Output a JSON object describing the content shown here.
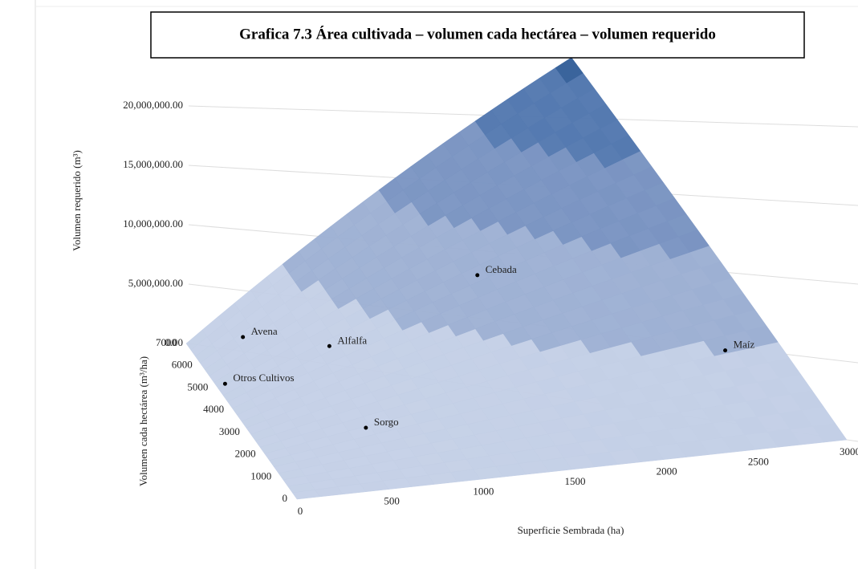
{
  "chart_data": {
    "type": "surface3d",
    "title": "Grafica 7.3 Área cultivada – volumen cada hectárea – volumen requerido",
    "xlabel": "Superficie Sembrada (ha)",
    "ylabel": "Volumen cada hectárea (m³/ha)",
    "zlabel": "Volumen requerido (m³)",
    "xlim": [
      0,
      3000
    ],
    "xticks": [
      0,
      500,
      1000,
      1500,
      2000,
      2500,
      3000
    ],
    "ylim": [
      0,
      7000
    ],
    "yticks": [
      0,
      1000,
      2000,
      3000,
      4000,
      5000,
      6000,
      7000
    ],
    "zlim": [
      0,
      21000000
    ],
    "zticks": [
      {
        "value": 0,
        "label": "0.00"
      },
      {
        "value": 5000000,
        "label": "5,000,000.00"
      },
      {
        "value": 10000000,
        "label": "10,000,000.00"
      },
      {
        "value": 15000000,
        "label": "15,000,000.00"
      },
      {
        "value": 20000000,
        "label": "20,000,000.00"
      }
    ],
    "band_colors": [
      "#c3cfe6",
      "#9db0d3",
      "#7a94c2",
      "#5479b0",
      "#35609a"
    ],
    "points": [
      {
        "name": "Avena",
        "x": 300,
        "y": 6000
      },
      {
        "name": "Otros Cultivos",
        "x": 50,
        "y": 5000
      },
      {
        "name": "Alfalfa",
        "x": 700,
        "y": 4500
      },
      {
        "name": "Sorgo",
        "x": 600,
        "y": 2000
      },
      {
        "name": "Cebada",
        "x": 1700,
        "y": 4500
      },
      {
        "name": "Maíz",
        "x": 2700,
        "y": 1800
      }
    ]
  }
}
